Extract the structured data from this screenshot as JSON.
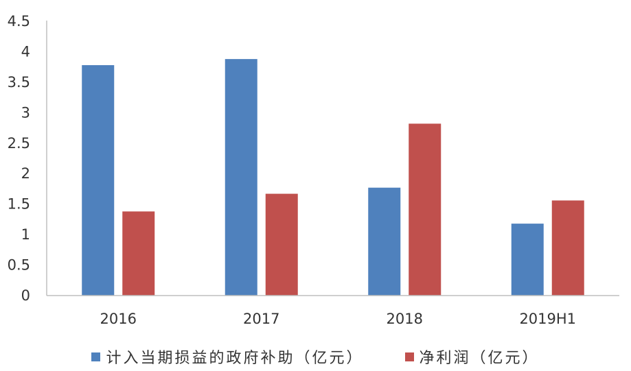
{
  "chart_data": {
    "type": "bar",
    "categories": [
      "2016",
      "2017",
      "2018",
      "2019H1"
    ],
    "series": [
      {
        "name": "计入当期损益的政府补助（亿元）",
        "color": "#4f81bd",
        "values": [
          3.78,
          3.88,
          1.77,
          1.18
        ]
      },
      {
        "name": "净利润（亿元）",
        "color": "#c0504d",
        "values": [
          1.38,
          1.67,
          2.82,
          1.56
        ]
      }
    ],
    "y_ticks": [
      "0",
      "0.5",
      "1",
      "1.5",
      "2",
      "2.5",
      "3",
      "3.5",
      "4",
      "4.5"
    ],
    "ylim": [
      0,
      4.5
    ],
    "grid": false,
    "legend_position": "bottom",
    "title": "",
    "xlabel": "",
    "ylabel": ""
  }
}
